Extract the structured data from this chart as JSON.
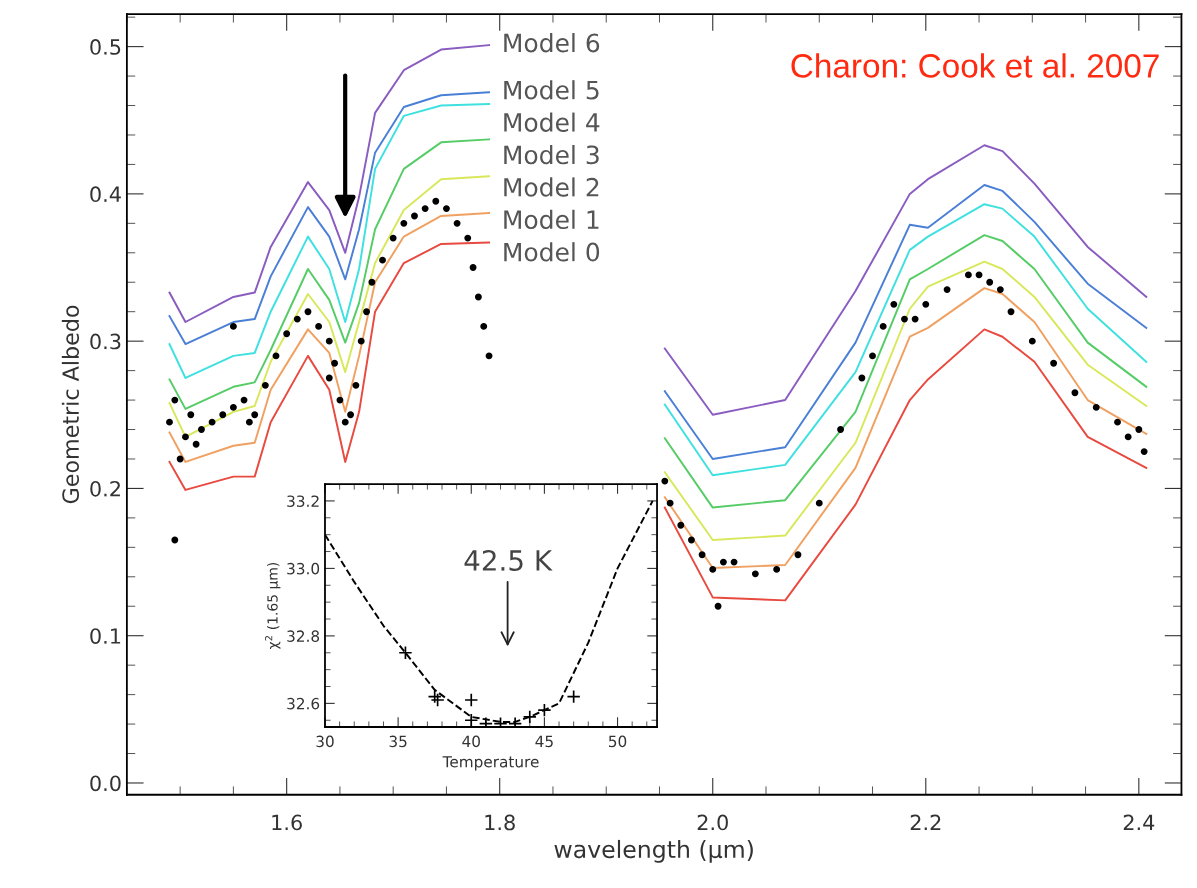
{
  "chart_data": [
    {
      "type": "line",
      "xlabel": "wavelength (μm)",
      "ylabel": "Geometric Albedo",
      "xlim": [
        1.45,
        2.44
      ],
      "xticks": [
        1.6,
        1.8,
        {
          "value": 2,
          "label": "2.0"
        },
        2.2,
        2.4
      ],
      "ylim": [
        -0.008,
        0.522
      ],
      "yticks": [
        {
          "value": 0,
          "label": "0.0"
        },
        0.1,
        0.2,
        0.3,
        0.4,
        0.5
      ],
      "x": [
        1.49,
        1.505,
        1.55,
        1.57,
        1.585,
        1.62,
        1.64,
        1.655,
        1.668,
        1.683,
        1.71,
        1.745,
        1.79,
        null,
        1.955,
        2.0,
        2.068,
        2.134,
        2.185,
        2.202,
        2.255,
        2.272,
        2.302,
        2.352,
        2.407
      ],
      "grid": false,
      "legend": false,
      "marker": "none",
      "line_style": "solid",
      "annotations": [
        "Charon: Cook et al. 2007"
      ],
      "series": [
        {
          "name": "Model 6",
          "color": "#8a5cc0",
          "values": [
            0.333,
            0.313,
            0.33,
            0.333,
            0.364,
            0.408,
            0.389,
            0.36,
            0.398,
            0.455,
            0.484,
            0.498,
            0.501,
            null,
            0.295,
            0.25,
            0.26,
            0.334,
            0.4,
            0.41,
            0.433,
            0.429,
            0.407,
            0.364,
            0.33
          ]
        },
        {
          "name": "Model 5",
          "color": "#4a7fd6",
          "values": [
            0.317,
            0.298,
            0.313,
            0.315,
            0.344,
            0.391,
            0.371,
            0.342,
            0.376,
            0.428,
            0.459,
            0.467,
            0.469,
            null,
            0.266,
            0.22,
            0.228,
            0.299,
            0.379,
            0.377,
            0.406,
            0.402,
            0.381,
            0.339,
            0.309
          ]
        },
        {
          "name": "Model 4",
          "color": "#3fe0e0",
          "values": [
            0.298,
            0.275,
            0.29,
            0.292,
            0.32,
            0.371,
            0.349,
            0.313,
            0.349,
            0.417,
            0.453,
            0.46,
            0.461,
            null,
            0.257,
            0.209,
            0.216,
            0.279,
            0.362,
            0.371,
            0.393,
            0.39,
            0.371,
            0.322,
            0.286
          ]
        },
        {
          "name": "Model 3",
          "color": "#55cc66",
          "values": [
            0.274,
            0.254,
            0.269,
            0.272,
            0.294,
            0.349,
            0.328,
            0.299,
            0.326,
            0.376,
            0.417,
            0.435,
            0.437,
            null,
            0.234,
            0.187,
            0.192,
            0.252,
            0.342,
            0.349,
            0.372,
            0.368,
            0.349,
            0.299,
            0.269
          ]
        },
        {
          "name": "Model 2",
          "color": "#d8e85a",
          "values": [
            0.258,
            0.235,
            0.252,
            0.256,
            0.286,
            0.332,
            0.313,
            0.279,
            0.313,
            0.353,
            0.389,
            0.41,
            0.412,
            null,
            0.211,
            0.165,
            0.168,
            0.231,
            0.322,
            0.337,
            0.354,
            0.349,
            0.33,
            0.284,
            0.256
          ]
        },
        {
          "name": "Model 1",
          "color": "#f0a060",
          "values": [
            0.238,
            0.218,
            0.229,
            0.231,
            0.267,
            0.308,
            0.292,
            0.252,
            0.29,
            0.34,
            0.371,
            0.385,
            0.387,
            null,
            0.194,
            0.146,
            0.148,
            0.214,
            0.303,
            0.309,
            0.336,
            0.332,
            0.313,
            0.26,
            0.237
          ]
        },
        {
          "name": "Model 0",
          "color": "#e84a40",
          "values": [
            0.218,
            0.199,
            0.208,
            0.208,
            0.245,
            0.29,
            0.267,
            0.218,
            0.252,
            0.32,
            0.353,
            0.366,
            0.367,
            null,
            0.187,
            0.126,
            0.124,
            0.189,
            0.26,
            0.274,
            0.308,
            0.303,
            0.286,
            0.235,
            0.214
          ]
        },
        {
          "type": "scatter",
          "color": "#000000",
          "marker": "circle",
          "x": [
            1.49,
            1.495,
            1.495,
            1.5,
            1.505,
            1.51,
            1.515,
            1.52,
            1.53,
            1.54,
            1.55,
            1.55,
            1.56,
            1.565,
            1.57,
            1.58,
            1.59,
            1.6,
            1.61,
            1.62,
            1.63,
            1.64,
            1.64,
            1.645,
            1.65,
            1.655,
            1.66,
            1.665,
            1.67,
            1.675,
            1.68,
            1.69,
            1.7,
            1.71,
            1.72,
            1.73,
            1.74,
            1.75,
            1.76,
            1.77,
            1.775,
            1.78,
            1.785,
            1.79,
            1.955,
            1.96,
            1.97,
            1.98,
            1.99,
            2.0,
            2.005,
            2.01,
            2.02,
            2.04,
            2.06,
            2.08,
            2.1,
            2.12,
            2.14,
            2.15,
            2.16,
            2.17,
            2.18,
            2.19,
            2.2,
            2.22,
            2.24,
            2.25,
            2.26,
            2.27,
            2.28,
            2.3,
            2.32,
            2.34,
            2.36,
            2.38,
            2.39,
            2.4,
            2.405
          ],
          "values": [
            0.245,
            0.26,
            0.165,
            0.22,
            0.235,
            0.25,
            0.23,
            0.24,
            0.245,
            0.25,
            0.255,
            0.31,
            0.26,
            0.245,
            0.25,
            0.27,
            0.29,
            0.305,
            0.315,
            0.32,
            0.31,
            0.3,
            0.275,
            0.285,
            0.26,
            0.245,
            0.25,
            0.27,
            0.3,
            0.32,
            0.34,
            0.355,
            0.37,
            0.38,
            0.385,
            0.39,
            0.395,
            0.39,
            0.38,
            0.37,
            0.35,
            0.33,
            0.31,
            0.29,
            0.205,
            0.19,
            0.175,
            0.165,
            0.155,
            0.145,
            0.12,
            0.15,
            0.15,
            0.142,
            0.145,
            0.155,
            0.19,
            0.24,
            0.275,
            0.29,
            0.31,
            0.325,
            0.315,
            0.315,
            0.325,
            0.335,
            0.345,
            0.345,
            0.34,
            0.335,
            0.32,
            0.3,
            0.285,
            0.265,
            0.255,
            0.245,
            0.235,
            0.24,
            0.225
          ]
        }
      ]
    },
    {
      "type": "line",
      "xlabel": "Temperature",
      "ylabel": "χ$^{2}$ (1.65 μm)",
      "xlim": [
        30,
        52.7
      ],
      "xticks": [
        30,
        35,
        40,
        45,
        50
      ],
      "ylim": [
        32.53,
        33.25
      ],
      "yticks": [
        32.6,
        32.8,
        {
          "value": 33,
          "label": "33.0"
        },
        33.2
      ],
      "grid": false,
      "legend": false,
      "line_style": "dashed",
      "marker": "none",
      "annotations": [
        "42.5 K"
      ],
      "series": [
        {
          "color": "#000000",
          "x": [
            30,
            32,
            34,
            35.5,
            37.5,
            40,
            42,
            43,
            44,
            46,
            48,
            50,
            52.4
          ],
          "values": [
            33.1,
            32.96,
            32.83,
            32.75,
            32.64,
            32.56,
            32.545,
            32.545,
            32.56,
            32.6,
            32.78,
            33.0,
            33.2
          ]
        },
        {
          "type": "scatter",
          "color": "#000000",
          "marker": "cross",
          "x": [
            35.5,
            37.5,
            37.7,
            40,
            40,
            41,
            42,
            43,
            44,
            45,
            47
          ],
          "values": [
            32.75,
            32.62,
            32.61,
            32.61,
            32.55,
            32.54,
            32.54,
            32.54,
            32.56,
            32.58,
            32.62
          ]
        }
      ]
    }
  ]
}
